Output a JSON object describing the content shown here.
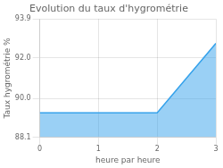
{
  "chart_data": {
    "type": "area",
    "title": "Evolution du taux d'hygrométrie",
    "xlabel": "heure par heure",
    "ylabel": "Taux hygrométrie %",
    "x": [
      0,
      2,
      3
    ],
    "values": [
      89.3,
      89.3,
      92.7
    ],
    "xlim": [
      0,
      3
    ],
    "ylim": [
      88.1,
      93.9
    ],
    "xticks": [
      0,
      1,
      2,
      3
    ],
    "yticks": [
      88.1,
      {
        "value": 90.0,
        "label": "90.0"
      },
      {
        "value": 92.0,
        "label": "92.0"
      },
      93.9
    ],
    "grid": true
  }
}
